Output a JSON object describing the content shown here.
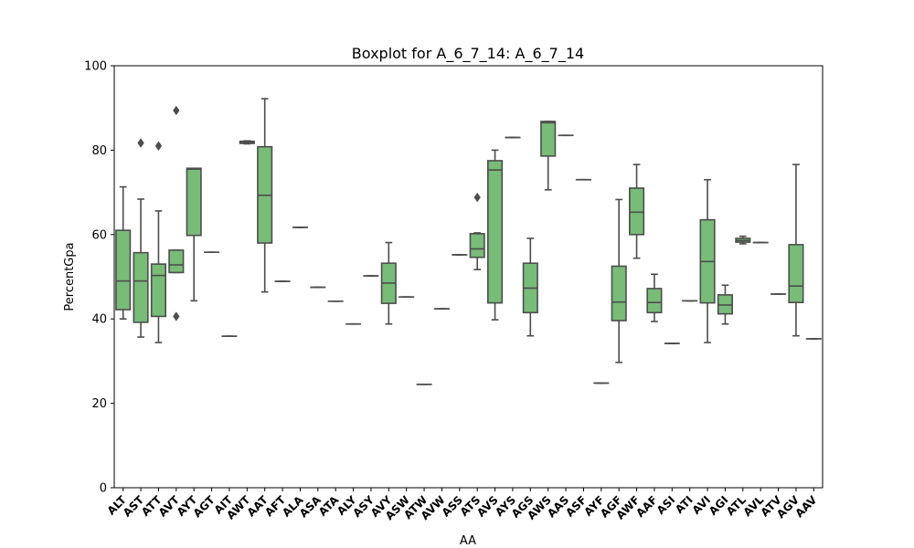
{
  "chart_data": {
    "type": "boxplot",
    "title": "Boxplot for A_6_7_14: A_6_7_14",
    "xlabel": "AA",
    "ylabel": "PercentGpa",
    "ylim": [
      0,
      100
    ],
    "yticks": [
      0,
      20,
      40,
      60,
      80,
      100
    ],
    "box_color": "#77bc77",
    "line_color": "#4d4d4d",
    "grid": false,
    "categories": [
      "ALT",
      "AST",
      "ATT",
      "AVT",
      "AYT",
      "AGT",
      "AIT",
      "AWT",
      "AAT",
      "AFT",
      "ALA",
      "ASA",
      "ATA",
      "ALY",
      "ASY",
      "AVY",
      "ASW",
      "ATW",
      "AVW",
      "ASS",
      "ATS",
      "AVS",
      "AYS",
      "AGS",
      "AWS",
      "AAS",
      "ASF",
      "AYF",
      "AGF",
      "AWF",
      "AAF",
      "ASI",
      "ATI",
      "AVI",
      "AGI",
      "ATL",
      "AVL",
      "ATV",
      "AGV",
      "AAV"
    ],
    "boxes": [
      {
        "min": 40.0,
        "q1": 42.2,
        "median": 49.0,
        "q3": 61.0,
        "max": 71.3,
        "outliers": []
      },
      {
        "min": 35.7,
        "q1": 39.2,
        "median": 49.0,
        "q3": 55.7,
        "max": 68.4,
        "outliers": [
          81.7
        ]
      },
      {
        "min": 34.4,
        "q1": 40.6,
        "median": 50.3,
        "q3": 53.0,
        "max": 65.6,
        "outliers": [
          81.0
        ]
      },
      {
        "min": 51.0,
        "q1": 51.0,
        "median": 52.8,
        "q3": 56.3,
        "max": 56.3,
        "outliers": [
          89.4,
          40.6
        ]
      },
      {
        "min": 44.3,
        "q1": 59.8,
        "median": 75.5,
        "q3": 75.7,
        "max": 75.7,
        "outliers": []
      },
      {
        "min": 55.8,
        "q1": 55.8,
        "median": 55.8,
        "q3": 55.8,
        "max": 55.8,
        "outliers": []
      },
      {
        "min": 35.9,
        "q1": 35.9,
        "median": 35.9,
        "q3": 35.9,
        "max": 35.9,
        "outliers": []
      },
      {
        "min": 81.5,
        "q1": 81.6,
        "median": 81.9,
        "q3": 82.1,
        "max": 82.2,
        "outliers": []
      },
      {
        "min": 46.4,
        "q1": 58.0,
        "median": 69.3,
        "q3": 80.8,
        "max": 92.2,
        "outliers": []
      },
      {
        "min": 48.9,
        "q1": 48.9,
        "median": 48.9,
        "q3": 48.9,
        "max": 48.9,
        "outliers": []
      },
      {
        "min": 61.7,
        "q1": 61.7,
        "median": 61.7,
        "q3": 61.7,
        "max": 61.7,
        "outliers": []
      },
      {
        "min": 47.5,
        "q1": 47.5,
        "median": 47.5,
        "q3": 47.5,
        "max": 47.5,
        "outliers": []
      },
      {
        "min": 44.2,
        "q1": 44.2,
        "median": 44.2,
        "q3": 44.2,
        "max": 44.2,
        "outliers": []
      },
      {
        "min": 38.8,
        "q1": 38.8,
        "median": 38.8,
        "q3": 38.8,
        "max": 38.8,
        "outliers": []
      },
      {
        "min": 50.2,
        "q1": 50.2,
        "median": 50.2,
        "q3": 50.2,
        "max": 50.2,
        "outliers": []
      },
      {
        "min": 38.8,
        "q1": 43.7,
        "median": 48.5,
        "q3": 53.2,
        "max": 58.1,
        "outliers": []
      },
      {
        "min": 45.2,
        "q1": 45.2,
        "median": 45.2,
        "q3": 45.2,
        "max": 45.2,
        "outliers": []
      },
      {
        "min": 24.5,
        "q1": 24.5,
        "median": 24.5,
        "q3": 24.5,
        "max": 24.5,
        "outliers": []
      },
      {
        "min": 42.4,
        "q1": 42.4,
        "median": 42.4,
        "q3": 42.4,
        "max": 42.4,
        "outliers": []
      },
      {
        "min": 55.2,
        "q1": 55.2,
        "median": 55.2,
        "q3": 55.2,
        "max": 55.2,
        "outliers": []
      },
      {
        "min": 51.7,
        "q1": 54.6,
        "median": 56.6,
        "q3": 60.2,
        "max": 60.4,
        "outliers": [
          68.8
        ]
      },
      {
        "min": 39.8,
        "q1": 43.8,
        "median": 75.3,
        "q3": 77.5,
        "max": 80.0,
        "outliers": []
      },
      {
        "min": 83.0,
        "q1": 83.0,
        "median": 83.0,
        "q3": 83.0,
        "max": 83.0,
        "outliers": []
      },
      {
        "min": 36.0,
        "q1": 41.5,
        "median": 47.3,
        "q3": 53.2,
        "max": 59.1,
        "outliers": []
      },
      {
        "min": 70.6,
        "q1": 78.6,
        "median": 86.5,
        "q3": 86.8,
        "max": 86.8,
        "outliers": []
      },
      {
        "min": 83.5,
        "q1": 83.5,
        "median": 83.5,
        "q3": 83.5,
        "max": 83.5,
        "outliers": []
      },
      {
        "min": 73.0,
        "q1": 73.0,
        "median": 73.0,
        "q3": 73.0,
        "max": 73.0,
        "outliers": []
      },
      {
        "min": 24.8,
        "q1": 24.8,
        "median": 24.8,
        "q3": 24.8,
        "max": 24.8,
        "outliers": []
      },
      {
        "min": 29.7,
        "q1": 39.6,
        "median": 44.0,
        "q3": 52.5,
        "max": 68.3,
        "outliers": []
      },
      {
        "min": 54.4,
        "q1": 60.0,
        "median": 65.3,
        "q3": 71.0,
        "max": 76.6,
        "outliers": []
      },
      {
        "min": 39.4,
        "q1": 41.5,
        "median": 43.9,
        "q3": 47.2,
        "max": 50.6,
        "outliers": []
      },
      {
        "min": 34.2,
        "q1": 34.2,
        "median": 34.2,
        "q3": 34.2,
        "max": 34.2,
        "outliers": []
      },
      {
        "min": 44.3,
        "q1": 44.3,
        "median": 44.3,
        "q3": 44.3,
        "max": 44.3,
        "outliers": []
      },
      {
        "min": 34.4,
        "q1": 43.8,
        "median": 53.6,
        "q3": 63.5,
        "max": 73.0,
        "outliers": []
      },
      {
        "min": 38.8,
        "q1": 41.2,
        "median": 43.3,
        "q3": 45.7,
        "max": 48.0,
        "outliers": []
      },
      {
        "min": 57.8,
        "q1": 58.2,
        "median": 58.6,
        "q3": 59.1,
        "max": 59.6,
        "outliers": []
      },
      {
        "min": 58.1,
        "q1": 58.1,
        "median": 58.1,
        "q3": 58.1,
        "max": 58.1,
        "outliers": []
      },
      {
        "min": 45.9,
        "q1": 45.9,
        "median": 45.9,
        "q3": 45.9,
        "max": 45.9,
        "outliers": []
      },
      {
        "min": 36.0,
        "q1": 43.9,
        "median": 47.8,
        "q3": 57.6,
        "max": 76.6,
        "outliers": []
      },
      {
        "min": 35.3,
        "q1": 35.3,
        "median": 35.3,
        "q3": 35.3,
        "max": 35.3,
        "outliers": []
      }
    ]
  }
}
